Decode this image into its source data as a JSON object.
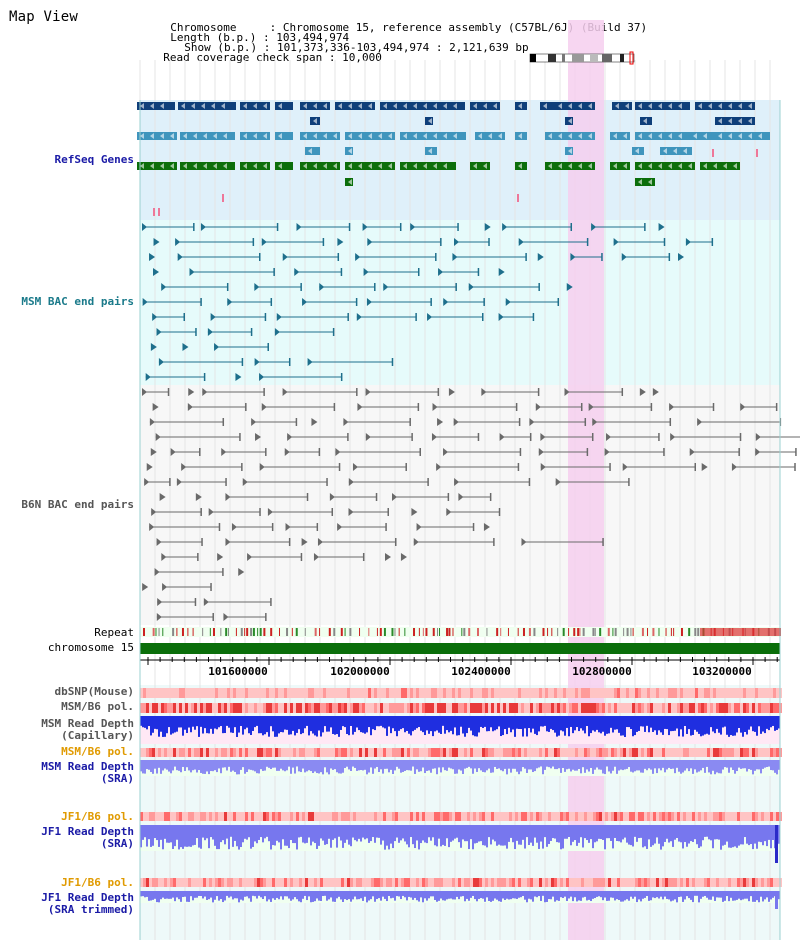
{
  "page": {
    "title": "Map View"
  },
  "info": {
    "chromosome_label": "Chromosome",
    "chromosome_value": "Chromosome 15, reference assembly (C57BL/6J) (Build 37)",
    "length_label": "Length (b.p.)",
    "length_value": "103,494,974",
    "show_label": "Show (b.p.)",
    "show_value": "101,373,336-103,494,974 : 2,121,639 bp",
    "coverage_label": "Read coverage check span",
    "coverage_value": "10,000"
  },
  "tracks": {
    "refseq": "RefSeq Genes",
    "msm_bac": "MSM BAC end pairs",
    "b6n_bac": "B6N BAC end pairs",
    "repeat": "Repeat",
    "chromosome": "chromosome 15",
    "dbsnp": "dbSNP(Mouse)",
    "msm_b6_pol_1": "MSM/B6 pol.",
    "msm_read_depth_cap_1": "MSM Read Depth",
    "msm_read_depth_cap_2": "(Capillary)",
    "msm_b6_pol_2": "MSM/B6 pol.",
    "msm_read_depth_sra_1": "MSM Read Depth",
    "msm_read_depth_sra_2": "(SRA)",
    "jf1_b6_pol_1": "JF1/B6 pol.",
    "jf1_read_depth_sra_1": "JF1 Read Depth",
    "jf1_read_depth_sra_2": "(SRA)",
    "jf1_b6_pol_2": "JF1/B6 pol.",
    "jf1_read_depth_trim_1": "JF1 Read Depth",
    "jf1_read_depth_trim_2": "(SRA trimmed)"
  },
  "axis": {
    "ticks": [
      "101600000",
      "102000000",
      "102400000",
      "102800000",
      "103200000"
    ]
  },
  "colors": {
    "refseq_bg": "#dff0fa",
    "bac_bg": "#e6fbfb",
    "highlight": "#f6cfee",
    "refseq_dark": "#0f3f7a",
    "refseq_mid": "#3f95bd",
    "refseq_green": "#0b6e0b",
    "msm_blue": "#1e6f8c",
    "b6n_grey": "#6a6a6a",
    "chrom_green": "#0a6e0a",
    "label_blue": "#1a1aa6",
    "label_teal": "#1a7a8a",
    "label_grey": "#555555",
    "label_orange": "#e09a00"
  }
}
